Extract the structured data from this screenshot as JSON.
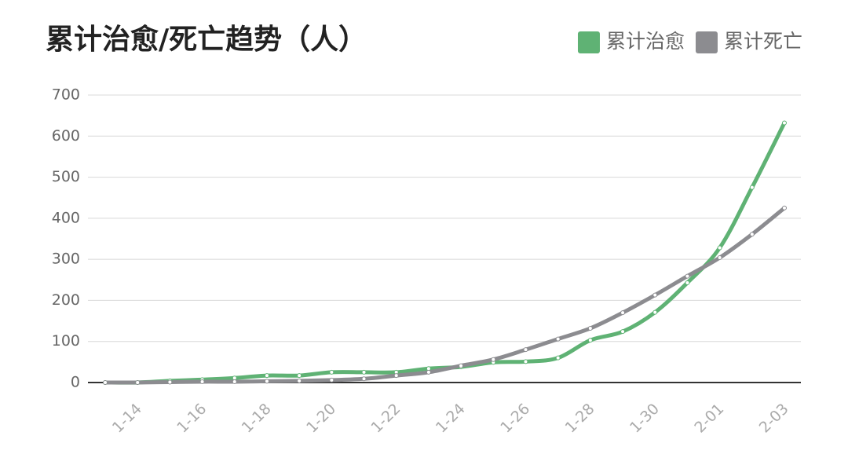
{
  "chart_data": {
    "type": "line",
    "title": "累计治愈/死亡趋势（人）",
    "categories": [
      null,
      "1-14",
      null,
      "1-16",
      null,
      "1-18",
      null,
      "1-20",
      null,
      "1-22",
      null,
      "1-24",
      null,
      "1-26",
      null,
      "1-28",
      null,
      "1-30",
      null,
      "2-01",
      null,
      "2-03"
    ],
    "series": [
      {
        "name": "累计治愈",
        "color": "#5fb274",
        "values": [
          0,
          0,
          4,
          7,
          11,
          17,
          17,
          25,
          25,
          25,
          34,
          38,
          49,
          51,
          60,
          103,
          124,
          171,
          243,
          328,
          475,
          632
        ]
      },
      {
        "name": "累计死亡",
        "color": "#8c8c90",
        "values": [
          0,
          0,
          1,
          2,
          2,
          3,
          4,
          6,
          9,
          17,
          25,
          41,
          56,
          80,
          106,
          132,
          170,
          213,
          259,
          304,
          361,
          425
        ]
      }
    ],
    "ylim": [
      0,
      700
    ],
    "yticks": [
      0,
      100,
      200,
      300,
      400,
      500,
      600,
      700
    ],
    "grid": true,
    "legend": "top-right"
  }
}
